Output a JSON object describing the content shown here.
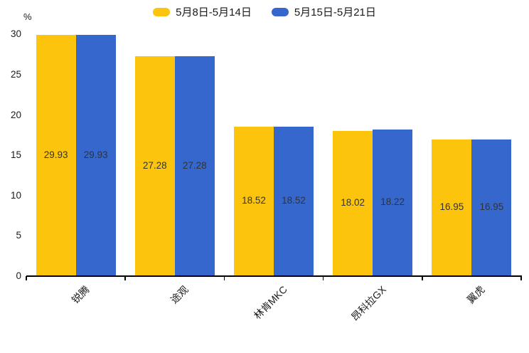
{
  "chart_data": {
    "type": "bar",
    "title": "",
    "unit_label": "%",
    "categories": [
      "锐腾",
      "途观",
      "林肯MKC",
      "昂科拉GX",
      "翼虎"
    ],
    "series": [
      {
        "name": "5月8日-5月14日",
        "color": "#FCC40D",
        "values": [
          29.93,
          27.28,
          18.52,
          18.02,
          16.95
        ]
      },
      {
        "name": "5月15日-5月21日",
        "color": "#3567CC",
        "values": [
          29.93,
          27.28,
          18.52,
          18.22,
          16.95
        ]
      }
    ],
    "value_labels": [
      "29.93",
      "27.28",
      "18.52",
      "18.02",
      "16.95",
      "29.93",
      "27.28",
      "18.52",
      "18.22",
      "16.95"
    ],
    "ylim": [
      0,
      30
    ],
    "yticks": [
      0,
      5,
      10,
      15,
      20,
      25,
      30
    ],
    "grid": false,
    "legend_position": "top-center",
    "value_label_placement": "inside-middle",
    "value_label_color": "#333333",
    "axis_color": "#000000",
    "background_color": "#ffffff"
  }
}
